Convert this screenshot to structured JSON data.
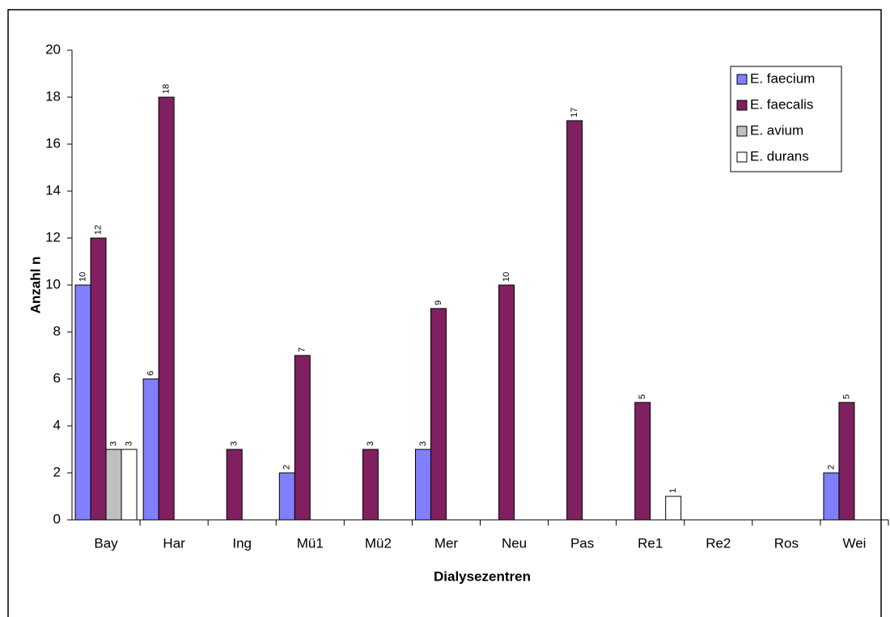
{
  "chart_data": {
    "type": "bar",
    "x_label": "Dialysezentren",
    "y_label": "Anzahl n",
    "categories": [
      "Bay",
      "Har",
      "Ing",
      "Mü1",
      "Mü2",
      "Mer",
      "Neu",
      "Pas",
      "Re1",
      "Re2",
      "Ros",
      "Wei"
    ],
    "series": [
      {
        "name": "E. faecium",
        "color": "#8080ff",
        "values": [
          10,
          6,
          null,
          2,
          null,
          3,
          null,
          null,
          null,
          null,
          null,
          2
        ]
      },
      {
        "name": "E. faecalis",
        "color": "#802060",
        "values": [
          12,
          18,
          3,
          7,
          3,
          9,
          10,
          17,
          5,
          null,
          null,
          5
        ]
      },
      {
        "name": "E. avium",
        "color": "#c0c0c0",
        "values": [
          3,
          null,
          null,
          null,
          null,
          null,
          null,
          null,
          null,
          null,
          null,
          null
        ]
      },
      {
        "name": "E. durans",
        "color": "#ffffff",
        "values": [
          3,
          null,
          null,
          null,
          null,
          null,
          null,
          null,
          1,
          null,
          null,
          null
        ]
      }
    ],
    "ylim": [
      0,
      20
    ],
    "yticks": [
      0,
      2,
      4,
      6,
      8,
      10,
      12,
      14,
      16,
      18,
      20
    ],
    "legend": "top-right"
  }
}
